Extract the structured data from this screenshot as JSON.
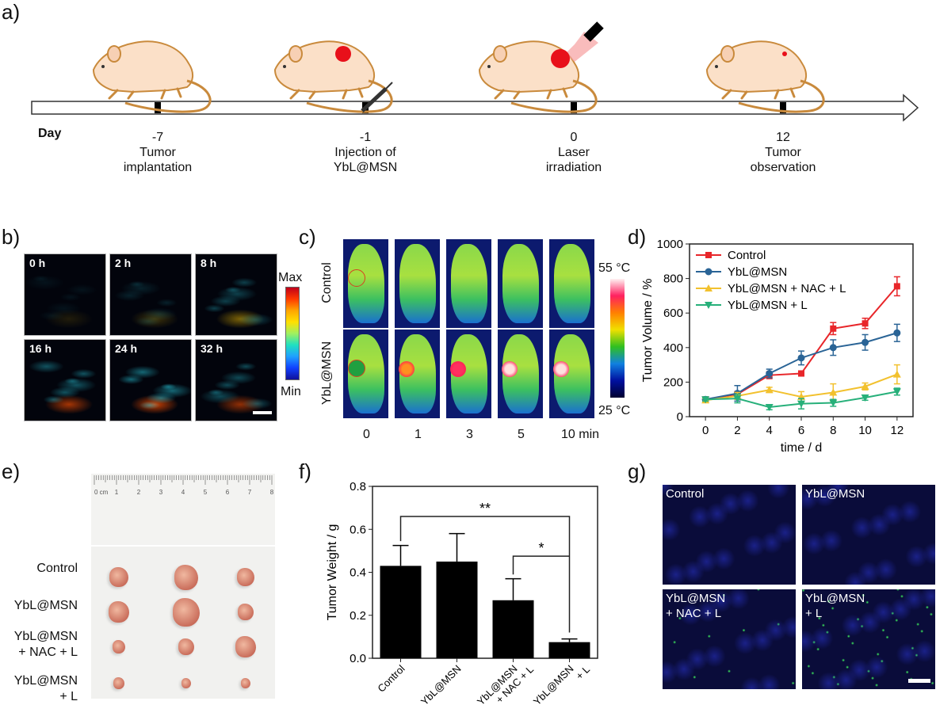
{
  "figure": {
    "panels": {
      "a": "a)",
      "b": "b)",
      "c": "c)",
      "d": "d)",
      "e": "e)",
      "f": "f)",
      "g": "g)"
    }
  },
  "timeline": {
    "axis_label": "Day",
    "events": [
      {
        "day": "-7",
        "line1": "Tumor",
        "line2": "implantation",
        "icon": "mouse-icon"
      },
      {
        "day": "-1",
        "line1": "Injection of",
        "line2": "YbL@MSN",
        "icon": "mouse-syringe-icon"
      },
      {
        "day": "0",
        "line1": "Laser",
        "line2": "irradiation",
        "icon": "mouse-laser-icon"
      },
      {
        "day": "12",
        "line1": "Tumor",
        "line2": "observation",
        "icon": "mouse-small-tumor-icon"
      }
    ]
  },
  "panel_b": {
    "frames": [
      "0 h",
      "2 h",
      "8 h",
      "16 h",
      "24 h",
      "32 h"
    ],
    "colorbar_max": "Max",
    "colorbar_min": "Min"
  },
  "panel_c": {
    "rows": [
      "Control",
      "YbL@MSN"
    ],
    "times": [
      "0",
      "1",
      "3",
      "5",
      "10 min"
    ],
    "colorbar_max": "55 °C",
    "colorbar_min": "25 °C"
  },
  "panel_e": {
    "ruler_labels": [
      "0 cm",
      "1",
      "2",
      "3",
      "4",
      "5",
      "6",
      "7",
      "8"
    ],
    "rows": [
      {
        "line1": "Control",
        "line2": ""
      },
      {
        "line1": "YbL@MSN",
        "line2": ""
      },
      {
        "line1": "YbL@MSN",
        "line2": "+ NAC + L"
      },
      {
        "line1": "YbL@MSN",
        "line2": "+ L"
      }
    ]
  },
  "panel_g": {
    "frames": [
      {
        "line1": "Control",
        "line2": ""
      },
      {
        "line1": "YbL@MSN",
        "line2": ""
      },
      {
        "line1": "YbL@MSN",
        "line2": "+ NAC + L"
      },
      {
        "line1": "YbL@MSN",
        "line2": "+ L"
      }
    ]
  },
  "colors": {
    "control": "#e8262a",
    "ybl": "#2a6496",
    "nac": "#f2c12e",
    "l": "#27b07a",
    "bar": "#000000"
  },
  "chart_data": [
    {
      "id": "d",
      "type": "line",
      "title": "",
      "xlabel": "time / d",
      "ylabel": "Tumor Volume / %",
      "xlim": [
        -1,
        13
      ],
      "ylim": [
        0,
        1000
      ],
      "xticks": [
        0,
        2,
        4,
        6,
        8,
        10,
        12
      ],
      "yticks": [
        0,
        200,
        400,
        600,
        800,
        1000
      ],
      "legend": "top-left",
      "x": [
        0,
        2,
        4,
        6,
        8,
        10,
        12
      ],
      "series": [
        {
          "name": "Control",
          "marker": "square",
          "values": [
            100,
            130,
            240,
            250,
            510,
            540,
            755
          ],
          "err": [
            10,
            15,
            20,
            15,
            35,
            30,
            55
          ]
        },
        {
          "name": "YbL@MSN",
          "marker": "circle",
          "values": [
            100,
            135,
            250,
            340,
            400,
            430,
            485
          ],
          "err": [
            10,
            45,
            25,
            40,
            45,
            45,
            50
          ]
        },
        {
          "name": "YbL@MSN + NAC + L",
          "marker": "triangle-up",
          "values": [
            95,
            120,
            155,
            115,
            140,
            175,
            245
          ],
          "err": [
            10,
            20,
            15,
            30,
            50,
            20,
            55
          ]
        },
        {
          "name": "YbL@MSN + L",
          "marker": "triangle-down",
          "values": [
            100,
            105,
            55,
            75,
            80,
            110,
            145
          ],
          "err": [
            10,
            25,
            15,
            30,
            20,
            15,
            20
          ]
        }
      ]
    },
    {
      "id": "f",
      "type": "bar",
      "title": "",
      "xlabel": "",
      "ylabel": "Tumor Weight / g",
      "ylim": [
        0,
        0.8
      ],
      "yticks": [
        "0.0",
        "0.2",
        "0.4",
        "0.6",
        "0.8"
      ],
      "categories": [
        {
          "line1": "Control",
          "line2": ""
        },
        {
          "line1": "YbL@MSN",
          "line2": ""
        },
        {
          "line1": "YbL@MSN",
          "line2": "+ NAC + L"
        },
        {
          "line1": "YbL@MSN",
          "line2": "+ L"
        }
      ],
      "values": [
        0.43,
        0.45,
        0.27,
        0.075
      ],
      "err": [
        0.095,
        0.13,
        0.1,
        0.015
      ],
      "significance": [
        {
          "from": 0,
          "to": 3,
          "label": "**"
        },
        {
          "from": 2,
          "to": 3,
          "label": "*"
        }
      ]
    }
  ]
}
